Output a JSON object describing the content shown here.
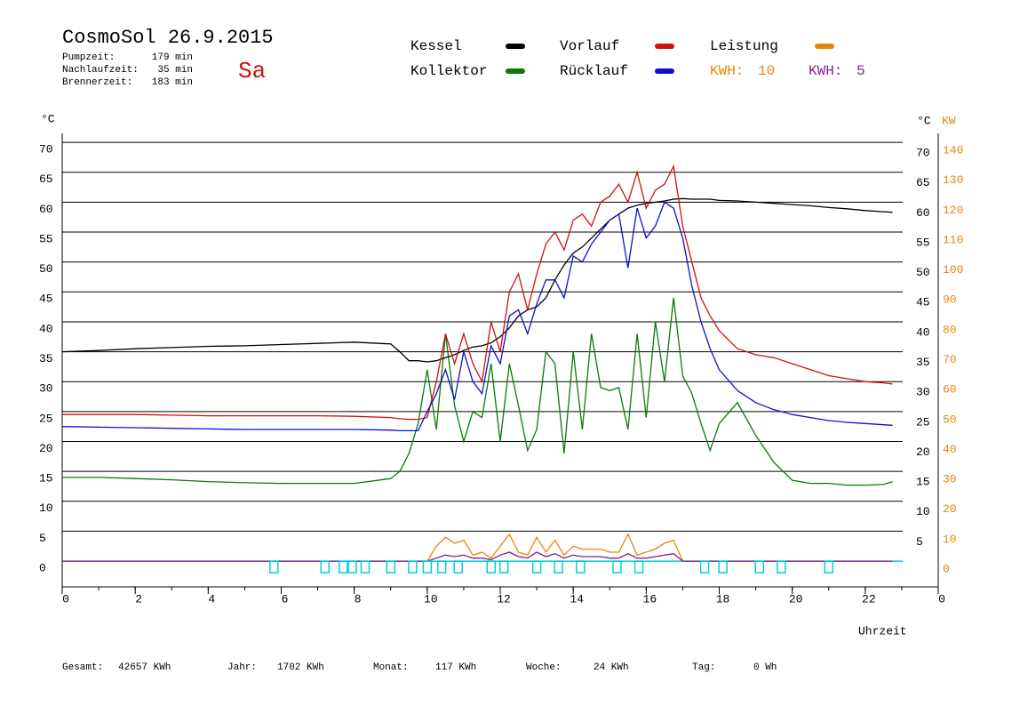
{
  "chart_data": {
    "type": "line",
    "title": "CosmoSol 26.9.2015",
    "day": "Sa",
    "info": [
      {
        "label": "Pumpzeit:",
        "value": "179 min"
      },
      {
        "label": "Nachlaufzeit:",
        "value": "35 min"
      },
      {
        "label": "Brennerzeit:",
        "value": "183 min"
      }
    ],
    "kwh": [
      {
        "label": "KWH:",
        "value": 10,
        "color": "#e8860c"
      },
      {
        "label": "KWH:",
        "value": 5,
        "color": "#80208f"
      }
    ],
    "y_label": "°C",
    "y2_unit_c": "°C",
    "y2_label": "KW",
    "x_label": "Uhrzeit",
    "xlim": [
      0,
      24
    ],
    "xticks": [
      0,
      2,
      4,
      6,
      8,
      10,
      12,
      14,
      16,
      18,
      20,
      22,
      {
        "value": 24,
        "label": "0"
      }
    ],
    "ylim": [
      -4.3,
      71.5
    ],
    "yticks": [
      0,
      5,
      10,
      15,
      20,
      25,
      30,
      35,
      40,
      45,
      50,
      55,
      60,
      65,
      70
    ],
    "yticks_right": [
      5,
      10,
      15,
      20,
      25,
      30,
      35,
      40,
      45,
      50,
      55,
      60,
      65,
      70
    ],
    "y2lim": [
      -8.6,
      143
    ],
    "y2ticks": [
      0,
      10,
      20,
      30,
      40,
      50,
      60,
      70,
      80,
      90,
      100,
      110,
      120,
      130,
      140
    ],
    "x": [
      0,
      1,
      2,
      3,
      4,
      5,
      6,
      7,
      8,
      9,
      9.25,
      9.5,
      9.75,
      10,
      10.25,
      10.5,
      10.75,
      11,
      11.25,
      11.5,
      11.75,
      12,
      12.25,
      12.5,
      12.75,
      13,
      13.25,
      13.5,
      13.75,
      14,
      14.25,
      14.5,
      14.75,
      15,
      15.25,
      15.5,
      15.75,
      16,
      16.25,
      16.5,
      16.75,
      17,
      17.25,
      17.5,
      17.75,
      18,
      18.5,
      19,
      19.5,
      20,
      20.5,
      21,
      21.5,
      22,
      22.5,
      22.75
    ],
    "series": [
      {
        "name": "Kessel",
        "color": "#000000",
        "values": [
          35,
          35.2,
          35.5,
          35.7,
          35.9,
          36,
          36.2,
          36.4,
          36.6,
          36.3,
          35,
          33.5,
          33.5,
          33.3,
          33.5,
          34,
          34.5,
          35.2,
          35.8,
          36,
          36.5,
          37.5,
          39,
          41,
          42,
          42.5,
          44,
          47,
          49.5,
          51.5,
          52.5,
          54,
          55.5,
          57,
          58,
          59,
          59.5,
          59.8,
          60,
          60.2,
          60.5,
          60.6,
          60.5,
          60.5,
          60.5,
          60.3,
          60.2,
          60,
          59.8,
          59.6,
          59.4,
          59.1,
          58.9,
          58.6,
          58.4,
          58.3
        ]
      },
      {
        "name": "Kollektor",
        "color": "#0a7a0a",
        "values": [
          14,
          14,
          13.8,
          13.6,
          13.3,
          13.1,
          13,
          13,
          13,
          13.8,
          15,
          18,
          23,
          32,
          22,
          38,
          26,
          20,
          25,
          24,
          33,
          20,
          33,
          26,
          18.5,
          22,
          35,
          33,
          18,
          35,
          22,
          38,
          29,
          28.5,
          29,
          22,
          38,
          24,
          40,
          30,
          44,
          31,
          28,
          23,
          18.5,
          23,
          26.5,
          21,
          16.5,
          13.5,
          13,
          13,
          12.7,
          12.7,
          12.8,
          13.3
        ]
      },
      {
        "name": "Vorlauf",
        "color": "#d01010",
        "values": [
          24.5,
          24.5,
          24.5,
          24.4,
          24.3,
          24.3,
          24.3,
          24.3,
          24.2,
          24,
          23.8,
          23.7,
          23.7,
          24,
          30,
          38,
          33,
          38,
          33,
          30,
          40,
          35,
          45,
          48,
          42,
          48,
          53,
          55,
          52,
          57,
          58,
          56,
          60,
          61,
          63,
          60,
          65,
          59,
          62,
          63,
          66,
          56,
          50,
          44,
          41,
          38.5,
          35.5,
          34.5,
          34,
          33,
          32,
          31,
          30.5,
          30,
          29.8,
          29.6
        ]
      },
      {
        "name": "Rücklauf",
        "color": "#1010c8",
        "values": [
          22.5,
          22.4,
          22.3,
          22.2,
          22.1,
          22,
          22,
          22,
          22,
          21.9,
          21.8,
          21.8,
          21.8,
          25,
          28,
          32,
          27,
          35,
          30,
          28,
          36,
          33,
          41,
          42,
          38,
          43,
          47,
          47,
          44,
          51,
          50,
          53,
          55,
          57,
          58,
          49,
          59,
          54,
          56,
          60,
          59,
          54,
          46,
          40,
          35.5,
          32,
          28.5,
          26.5,
          25.3,
          24.5,
          24,
          23.5,
          23.2,
          23,
          22.8,
          22.7
        ]
      },
      {
        "name": "Leistung",
        "color": "#e8860c",
        "axis": "y2",
        "values": [
          0,
          0,
          0,
          0,
          0,
          0,
          0,
          0,
          0,
          0,
          0,
          0,
          0,
          0,
          5,
          8,
          6,
          7,
          2,
          3,
          1,
          5,
          9,
          3,
          2,
          8,
          3,
          7,
          2,
          5,
          4,
          4,
          4,
          3,
          3,
          9,
          2,
          3,
          4,
          6,
          7,
          0,
          0,
          0,
          0,
          0,
          0,
          0,
          0,
          0,
          0,
          0,
          0,
          0,
          0,
          0
        ]
      },
      {
        "color": "#80208f",
        "axis": "y2",
        "values": [
          0,
          0,
          0,
          0,
          0,
          0,
          0,
          0,
          0,
          0,
          0,
          0,
          0,
          0,
          1,
          2,
          1.5,
          2,
          1,
          1,
          0.5,
          2,
          3,
          1.5,
          1,
          3,
          1.5,
          2.5,
          1,
          2,
          1.5,
          1.5,
          1.5,
          1,
          1,
          2.5,
          1,
          1,
          1.5,
          2,
          2.5,
          0,
          0,
          0,
          0,
          0,
          0,
          0,
          0,
          0,
          0,
          0,
          0,
          0,
          0,
          0
        ]
      }
    ],
    "markers": [
      5.8,
      7.2,
      7.7,
      7.95,
      8.3,
      9.0,
      9.6,
      10.0,
      10.4,
      10.85,
      11.75,
      12.1,
      13.0,
      13.6,
      14.2,
      15.2,
      15.8,
      17.6,
      18.1,
      19.1,
      19.7,
      21.0
    ],
    "footer": [
      {
        "label": "Gesamt:",
        "value": "42657 KWh"
      },
      {
        "label": "Jahr:",
        "value": "1702 KWh"
      },
      {
        "label": "Monat:",
        "value": "117 KWh"
      },
      {
        "label": "Woche:",
        "value": "24 KWh"
      },
      {
        "label": "Tag:",
        "value": "0 Wh"
      }
    ]
  }
}
